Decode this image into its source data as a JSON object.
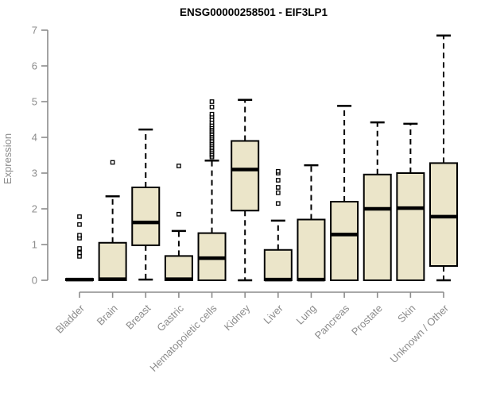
{
  "chart_data": {
    "type": "boxplot",
    "title": "ENSG00000258501 - EIF3LP1",
    "ylabel": "Expression",
    "xlabel": "",
    "ylim": [
      0,
      7
    ],
    "yticks": [
      0,
      1,
      2,
      3,
      4,
      5,
      6,
      7
    ],
    "grid": false,
    "legend": "none",
    "categories": [
      "Bladder",
      "Brain",
      "Breast",
      "Gastric",
      "Hematopoietic cells",
      "Kidney",
      "Liver",
      "Lung",
      "Pancreas",
      "Prostate",
      "Skin",
      "Unknown / Other"
    ],
    "series": [
      {
        "name": "Bladder",
        "whisker_low": 0,
        "q1": 0,
        "median": 0.02,
        "q3": 0.04,
        "whisker_high": 0.04,
        "outliers": [
          0.67,
          0.77,
          0.89,
          1.18,
          1.26,
          1.56,
          1.78
        ]
      },
      {
        "name": "Brain",
        "whisker_low": 0,
        "q1": 0,
        "median": 0.03,
        "q3": 1.05,
        "whisker_high": 2.35,
        "outliers": [
          3.3
        ]
      },
      {
        "name": "Breast",
        "whisker_low": 0.02,
        "q1": 0.98,
        "median": 1.62,
        "q3": 2.6,
        "whisker_high": 4.22,
        "outliers": []
      },
      {
        "name": "Gastric",
        "whisker_low": 0,
        "q1": 0,
        "median": 0.03,
        "q3": 0.68,
        "whisker_high": 1.38,
        "outliers": [
          1.85,
          3.2
        ]
      },
      {
        "name": "Hematopoietic cells",
        "whisker_low": 0,
        "q1": 0,
        "median": 0.62,
        "q3": 1.32,
        "whisker_high": 3.35,
        "outliers": [
          3.45,
          3.5,
          3.55,
          3.6,
          3.65,
          3.7,
          3.75,
          3.8,
          3.85,
          3.9,
          3.95,
          4.0,
          4.05,
          4.1,
          4.15,
          4.2,
          4.25,
          4.3,
          4.35,
          4.42,
          4.5,
          4.58,
          4.65,
          4.85,
          5.0
        ]
      },
      {
        "name": "Kidney",
        "whisker_low": 0,
        "q1": 1.95,
        "median": 3.1,
        "q3": 3.9,
        "whisker_high": 5.05,
        "outliers": []
      },
      {
        "name": "Liver",
        "whisker_low": 0,
        "q1": 0,
        "median": 0.02,
        "q3": 0.85,
        "whisker_high": 1.67,
        "outliers": [
          2.15,
          2.45,
          2.6,
          2.8,
          3.0,
          3.05
        ]
      },
      {
        "name": "Lung",
        "whisker_low": 0,
        "q1": 0,
        "median": 0.02,
        "q3": 1.7,
        "whisker_high": 3.22,
        "outliers": []
      },
      {
        "name": "Pancreas",
        "whisker_low": 0,
        "q1": 0,
        "median": 1.28,
        "q3": 2.2,
        "whisker_high": 4.88,
        "outliers": []
      },
      {
        "name": "Prostate",
        "whisker_low": 0,
        "q1": 0,
        "median": 2.0,
        "q3": 2.96,
        "whisker_high": 4.42,
        "outliers": []
      },
      {
        "name": "Skin",
        "whisker_low": 0,
        "q1": 0,
        "median": 2.02,
        "q3": 3.0,
        "whisker_high": 4.38,
        "outliers": []
      },
      {
        "name": "Unknown / Other",
        "whisker_low": 0,
        "q1": 0.4,
        "median": 1.78,
        "q3": 3.28,
        "whisker_high": 6.85,
        "outliers": []
      }
    ]
  },
  "style": {
    "box_fill": "#ebe5c9",
    "box_stroke": "#000000",
    "axis_color": "#8c8c8c",
    "label_color": "#8c8c8c",
    "title_color": "#000000",
    "background": "#ffffff"
  }
}
